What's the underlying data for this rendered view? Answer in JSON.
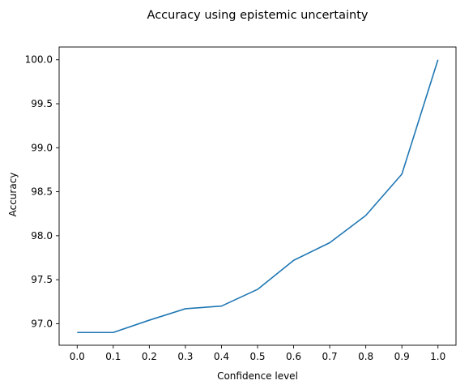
{
  "chart_data": {
    "type": "line",
    "title": "Accuracy using epistemic uncertainty",
    "xlabel": "Confidence level",
    "ylabel": "Accuracy",
    "xlim": [
      -0.05,
      1.05
    ],
    "ylim": [
      96.755,
      100.145
    ],
    "xticks": [
      0.0,
      0.1,
      0.2,
      0.3,
      0.4,
      0.5,
      0.6,
      0.7,
      0.8,
      0.9,
      1.0
    ],
    "xtick_labels": [
      "0.0",
      "0.1",
      "0.2",
      "0.3",
      "0.4",
      "0.5",
      "0.6",
      "0.7",
      "0.8",
      "0.9",
      "1.0"
    ],
    "yticks": [
      97.0,
      97.5,
      98.0,
      98.5,
      99.0,
      99.5,
      100.0
    ],
    "ytick_labels": [
      "97.0",
      "97.5",
      "98.0",
      "98.5",
      "99.0",
      "99.5",
      "100.0"
    ],
    "grid": false,
    "series": [
      {
        "color": "#1f77b4",
        "x": [
          0.0,
          0.1,
          0.2,
          0.3,
          0.4,
          0.5,
          0.6,
          0.7,
          0.8,
          0.9,
          1.0
        ],
        "y": [
          96.9,
          96.9,
          97.04,
          97.17,
          97.2,
          97.39,
          97.72,
          97.92,
          98.23,
          98.7,
          100.0
        ]
      }
    ]
  }
}
